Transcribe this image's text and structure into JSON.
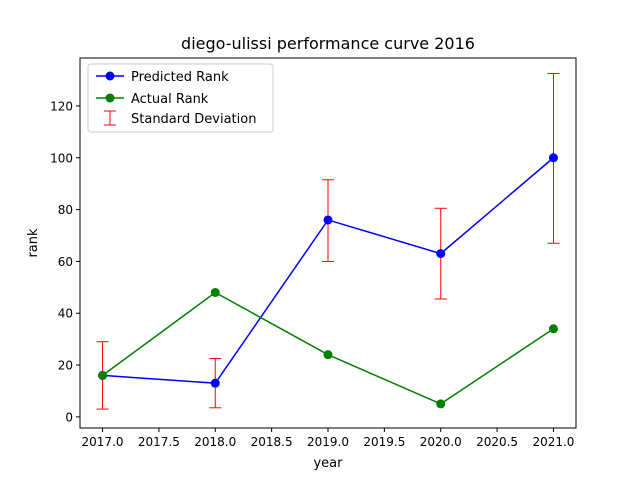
{
  "chart_data": {
    "type": "line",
    "title": "diego-ulissi performance curve 2016",
    "xlabel": "year",
    "ylabel": "rank",
    "xlim": [
      2016.8,
      2021.2
    ],
    "ylim": [
      -4.3,
      138.5
    ],
    "xticks": [
      2017.0,
      2017.5,
      2018.0,
      2018.5,
      2019.0,
      2019.5,
      2020.0,
      2020.5,
      2021.0
    ],
    "xtick_labels": [
      "2017.0",
      "2017.5",
      "2018.0",
      "2018.5",
      "2019.0",
      "2019.5",
      "2020.0",
      "2020.5",
      "2021.0"
    ],
    "yticks": [
      0,
      20,
      40,
      60,
      80,
      100,
      120
    ],
    "ytick_labels": [
      "0",
      "20",
      "40",
      "60",
      "80",
      "100",
      "120"
    ],
    "grid": false,
    "legend_position": "top-left",
    "x": [
      2017,
      2018,
      2019,
      2020,
      2021
    ],
    "series": [
      {
        "name": "Predicted Rank",
        "color": "#0000ff",
        "values": [
          16,
          13,
          76,
          63,
          100
        ],
        "error_lower": [
          3,
          3.5,
          60,
          45.5,
          67
        ],
        "error_upper": [
          29,
          22.5,
          91.5,
          80.5,
          132.5
        ]
      },
      {
        "name": "Actual Rank",
        "color": "#008000",
        "values": [
          16,
          48,
          24,
          5,
          34
        ]
      }
    ],
    "errorbar": {
      "name": "Standard Deviation",
      "color": "#ff0000"
    }
  }
}
